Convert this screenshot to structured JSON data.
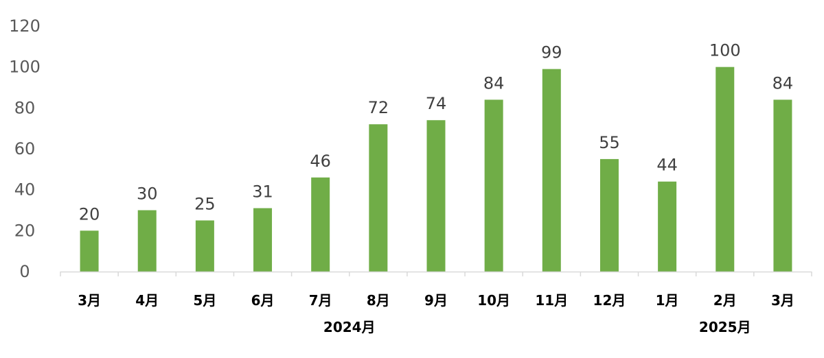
{
  "chart_data": {
    "type": "bar",
    "title": "",
    "xlabel": "",
    "ylabel": "",
    "categories": [
      "3月",
      "4月",
      "5月",
      "6月",
      "7月",
      "8月",
      "9月",
      "10月",
      "11月",
      "12月",
      "1月",
      "2月",
      "3月"
    ],
    "values": [
      20,
      30,
      25,
      31,
      46,
      72,
      74,
      84,
      99,
      55,
      44,
      100,
      84
    ],
    "ylim": [
      0,
      120
    ],
    "yticks": [
      "0",
      "20",
      "40",
      "60",
      "80",
      "100",
      "120"
    ],
    "group_labels": [
      {
        "label": "2024月",
        "from": 0,
        "to": 9
      },
      {
        "label": "2025月",
        "from": 10,
        "to": 12
      }
    ],
    "grid": false,
    "legend": "none",
    "bar_color": "#70ad47",
    "axis_color": "#d9d9d9"
  }
}
